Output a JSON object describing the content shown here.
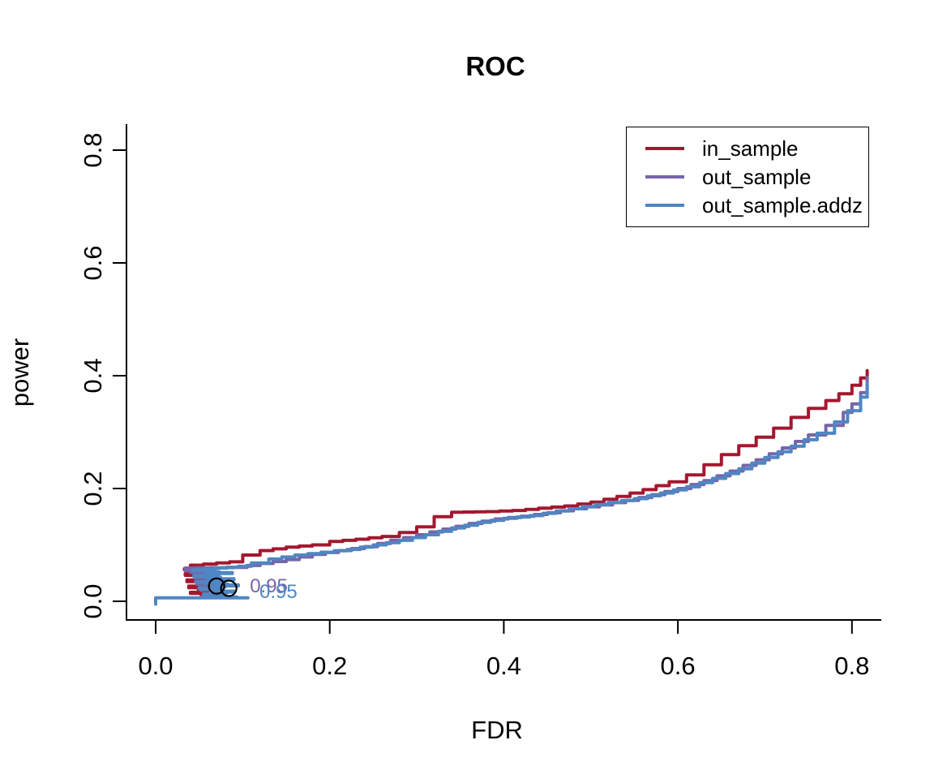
{
  "chart_data": {
    "type": "line",
    "title": "ROC",
    "xlabel": "FDR",
    "ylabel": "power",
    "xlim": [
      0,
      0.84
    ],
    "ylim": [
      0,
      0.84
    ],
    "grid": false,
    "x_ticks": {
      "values": [
        0.0,
        0.2,
        0.4,
        0.6,
        0.8
      ],
      "labels": [
        "0.0",
        "0.2",
        "0.4",
        "0.6",
        "0.8"
      ]
    },
    "y_ticks": {
      "values": [
        0.0,
        0.2,
        0.4,
        0.6,
        0.8
      ],
      "labels": [
        "0.0",
        "0.2",
        "0.4",
        "0.6",
        "0.8"
      ]
    },
    "legend": {
      "position": "top-right"
    },
    "series": [
      {
        "name": "in_sample",
        "color": "#A3182F",
        "points": [
          [
            0.076,
            0.01
          ],
          [
            0.04,
            0.016
          ],
          [
            0.06,
            0.021
          ],
          [
            0.038,
            0.027
          ],
          [
            0.065,
            0.032
          ],
          [
            0.036,
            0.038
          ],
          [
            0.068,
            0.043
          ],
          [
            0.034,
            0.049
          ],
          [
            0.062,
            0.054
          ],
          [
            0.033,
            0.058
          ],
          [
            0.04,
            0.064
          ],
          [
            0.085,
            0.07
          ],
          [
            0.1,
            0.082
          ],
          [
            0.12,
            0.09
          ],
          [
            0.15,
            0.096
          ],
          [
            0.18,
            0.1
          ],
          [
            0.2,
            0.106
          ],
          [
            0.23,
            0.11
          ],
          [
            0.26,
            0.115
          ],
          [
            0.28,
            0.122
          ],
          [
            0.3,
            0.132
          ],
          [
            0.32,
            0.15
          ],
          [
            0.34,
            0.158
          ],
          [
            0.38,
            0.159
          ],
          [
            0.41,
            0.161
          ],
          [
            0.44,
            0.165
          ],
          [
            0.47,
            0.169
          ],
          [
            0.5,
            0.176
          ],
          [
            0.53,
            0.186
          ],
          [
            0.56,
            0.198
          ],
          [
            0.59,
            0.212
          ],
          [
            0.61,
            0.224
          ],
          [
            0.63,
            0.242
          ],
          [
            0.65,
            0.26
          ],
          [
            0.67,
            0.276
          ],
          [
            0.69,
            0.291
          ],
          [
            0.71,
            0.307
          ],
          [
            0.73,
            0.326
          ],
          [
            0.75,
            0.342
          ],
          [
            0.77,
            0.356
          ],
          [
            0.785,
            0.368
          ],
          [
            0.8,
            0.383
          ],
          [
            0.81,
            0.396
          ],
          [
            0.8175,
            0.409
          ]
        ]
      },
      {
        "name": "out_sample",
        "color": "#7765A9",
        "points": [
          [
            0.079,
            0.01
          ],
          [
            0.056,
            0.013
          ],
          [
            0.082,
            0.017
          ],
          [
            0.052,
            0.022
          ],
          [
            0.078,
            0.027
          ],
          [
            0.048,
            0.033
          ],
          [
            0.075,
            0.038
          ],
          [
            0.045,
            0.044
          ],
          [
            0.072,
            0.049
          ],
          [
            0.04,
            0.054
          ],
          [
            0.034,
            0.059
          ],
          [
            0.09,
            0.06
          ],
          [
            0.12,
            0.067
          ],
          [
            0.15,
            0.074
          ],
          [
            0.18,
            0.083
          ],
          [
            0.21,
            0.09
          ],
          [
            0.24,
            0.097
          ],
          [
            0.27,
            0.108
          ],
          [
            0.3,
            0.118
          ],
          [
            0.33,
            0.128
          ],
          [
            0.36,
            0.138
          ],
          [
            0.39,
            0.146
          ],
          [
            0.42,
            0.151
          ],
          [
            0.45,
            0.157
          ],
          [
            0.48,
            0.164
          ],
          [
            0.51,
            0.171
          ],
          [
            0.54,
            0.179
          ],
          [
            0.57,
            0.189
          ],
          [
            0.6,
            0.2
          ],
          [
            0.63,
            0.214
          ],
          [
            0.66,
            0.231
          ],
          [
            0.69,
            0.251
          ],
          [
            0.72,
            0.272
          ],
          [
            0.75,
            0.295
          ],
          [
            0.77,
            0.312
          ],
          [
            0.79,
            0.335
          ],
          [
            0.8,
            0.35
          ],
          [
            0.81,
            0.37
          ],
          [
            0.8175,
            0.397
          ]
        ]
      },
      {
        "name": "out_sample.addz",
        "color": "#4E87C3",
        "points": [
          [
            0.0,
            -0.005
          ],
          [
            0.0,
            0.006
          ],
          [
            0.106,
            0.006
          ],
          [
            0.055,
            0.013
          ],
          [
            0.09,
            0.018
          ],
          [
            0.05,
            0.024
          ],
          [
            0.095,
            0.029
          ],
          [
            0.046,
            0.035
          ],
          [
            0.09,
            0.04
          ],
          [
            0.044,
            0.046
          ],
          [
            0.088,
            0.051
          ],
          [
            0.042,
            0.056
          ],
          [
            0.095,
            0.062
          ],
          [
            0.11,
            0.068
          ],
          [
            0.13,
            0.075
          ],
          [
            0.16,
            0.082
          ],
          [
            0.19,
            0.087
          ],
          [
            0.22,
            0.092
          ],
          [
            0.25,
            0.1
          ],
          [
            0.28,
            0.108
          ],
          [
            0.31,
            0.118
          ],
          [
            0.34,
            0.13
          ],
          [
            0.37,
            0.14
          ],
          [
            0.4,
            0.147
          ],
          [
            0.43,
            0.152
          ],
          [
            0.46,
            0.16
          ],
          [
            0.49,
            0.168
          ],
          [
            0.52,
            0.175
          ],
          [
            0.55,
            0.182
          ],
          [
            0.58,
            0.192
          ],
          [
            0.61,
            0.203
          ],
          [
            0.64,
            0.218
          ],
          [
            0.67,
            0.235
          ],
          [
            0.7,
            0.255
          ],
          [
            0.73,
            0.275
          ],
          [
            0.76,
            0.298
          ],
          [
            0.78,
            0.318
          ],
          [
            0.795,
            0.338
          ],
          [
            0.81,
            0.362
          ],
          [
            0.8175,
            0.386
          ]
        ]
      }
    ],
    "markers": [
      {
        "shape": "circle-open",
        "x": 0.07,
        "y": 0.027,
        "color": "#000000"
      },
      {
        "shape": "circle-open",
        "x": 0.084,
        "y": 0.023,
        "color": "#000000"
      }
    ],
    "annotations": [
      {
        "text": "0.95",
        "x": 0.13,
        "y": 0.027,
        "color": "#7765A9"
      },
      {
        "text": "0.95",
        "x": 0.141,
        "y": 0.017,
        "color": "#4E87C3"
      }
    ]
  }
}
